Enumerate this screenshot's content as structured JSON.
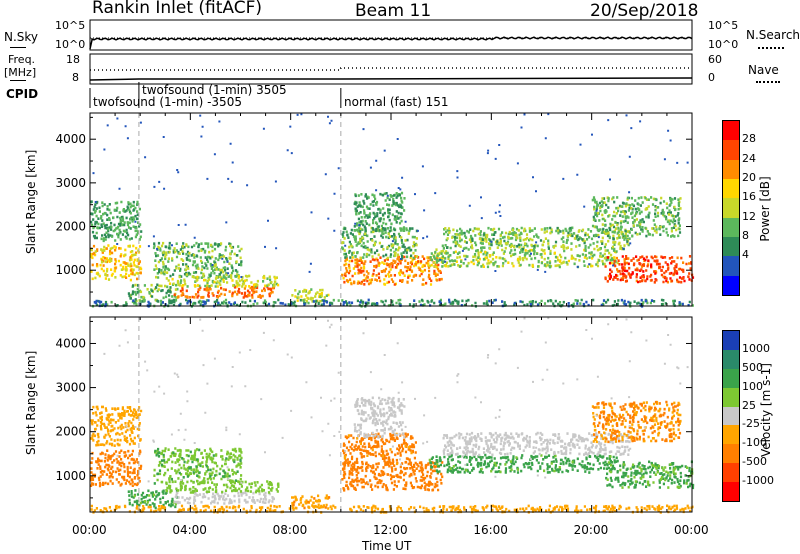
{
  "header": {
    "title": "Rankin Inlet (fitACF)",
    "beam": "Beam 11",
    "date": "20/Sep/2018"
  },
  "top_panels": {
    "nsky_label": "N.Sky",
    "nsky_ticks": [
      "10^5",
      "10^0"
    ],
    "nsearch_label": "N.Search",
    "nsearch_ticks": [
      "10^5",
      "10^0"
    ],
    "freq_label_1": "Freq.",
    "freq_label_2": "[MHz]",
    "freq_ticks": [
      "18",
      "8"
    ],
    "nave_label": "Nave",
    "nave_ticks": [
      "60",
      "0"
    ],
    "cpid_label": "CPID",
    "cpid_segments": [
      {
        "text": "twofsound (1-min) -3505",
        "row": 2
      },
      {
        "text": "twofsound (1-min) 3505",
        "row": 1
      },
      {
        "text": "normal (fast) 151",
        "row": 2
      }
    ]
  },
  "chart_data": [
    {
      "type": "heatmap",
      "name": "power",
      "title": "",
      "xlabel": "",
      "ylabel": "Slant Range [km]",
      "xlim": [
        0,
        24
      ],
      "ylim": [
        180,
        4600
      ],
      "x_ticks": [
        "00:00",
        "04:00",
        "08:00",
        "12:00",
        "16:00",
        "20:00",
        "00:00"
      ],
      "y_ticks": [
        1000,
        2000,
        3000,
        4000
      ],
      "mode_change_hours": [
        1.95,
        10.0
      ],
      "colorbar": {
        "label": "Power [dB]",
        "ticks": [
          "4",
          "8",
          "12",
          "16",
          "20",
          "24",
          "28"
        ],
        "colors": [
          "#0000ff",
          "#2255bb",
          "#2e8b57",
          "#5cb85c",
          "#c8d82a",
          "#ffd700",
          "#ff8c00",
          "#ff4500",
          "#ff0000"
        ]
      },
      "echo_regions": [
        {
          "t0": 0.0,
          "t1": 2.0,
          "r0": 800,
          "r1": 1600,
          "v": 20
        },
        {
          "t0": 0.0,
          "t1": 2.0,
          "r0": 1700,
          "r1": 2600,
          "v": 10
        },
        {
          "t0": 1.5,
          "t1": 3.5,
          "r0": 300,
          "r1": 700,
          "v": 12
        },
        {
          "t0": 2.5,
          "t1": 6.0,
          "r0": 850,
          "r1": 1650,
          "v": 12
        },
        {
          "t0": 3.3,
          "t1": 7.3,
          "r0": 400,
          "r1": 650,
          "v": 26
        },
        {
          "t0": 3.0,
          "t1": 7.5,
          "r0": 650,
          "r1": 900,
          "v": 16
        },
        {
          "t0": 8.0,
          "t1": 9.5,
          "r0": 300,
          "r1": 600,
          "v": 16
        },
        {
          "t0": 10.0,
          "t1": 14.0,
          "r0": 700,
          "r1": 1350,
          "v": 24
        },
        {
          "t0": 10.0,
          "t1": 13.0,
          "r0": 1300,
          "r1": 2000,
          "v": 12
        },
        {
          "t0": 10.5,
          "t1": 12.5,
          "r0": 1900,
          "r1": 2800,
          "v": 10
        },
        {
          "t0": 13.5,
          "t1": 21.0,
          "r0": 1100,
          "r1": 1500,
          "v": 15
        },
        {
          "t0": 14.0,
          "t1": 21.5,
          "r0": 1500,
          "r1": 2000,
          "v": 13
        },
        {
          "t0": 20.5,
          "t1": 24.0,
          "r0": 750,
          "r1": 1350,
          "v": 28
        },
        {
          "t0": 20.0,
          "t1": 23.5,
          "r0": 1800,
          "r1": 2700,
          "v": 12
        },
        {
          "t0": 0.0,
          "t1": 24.0,
          "r0": 200,
          "r1": 350,
          "v": 8
        }
      ]
    },
    {
      "type": "heatmap",
      "name": "velocity",
      "title": "",
      "xlabel": "Time UT",
      "ylabel": "Slant Range [km]",
      "xlim": [
        0,
        24
      ],
      "ylim": [
        180,
        4600
      ],
      "x_ticks": [
        "00:00",
        "04:00",
        "08:00",
        "12:00",
        "16:00",
        "20:00",
        "00:00"
      ],
      "y_ticks": [
        1000,
        2000,
        3000,
        4000
      ],
      "mode_change_hours": [
        1.95,
        10.0
      ],
      "colorbar": {
        "label": "Velocity [m s-1]",
        "ticks": [
          "1000",
          "500",
          "100",
          "25",
          "-25",
          "-100",
          "-500",
          "-1000"
        ],
        "colors": [
          "#1a3fb5",
          "#2a8a6a",
          "#3aa34a",
          "#7dc832",
          "#c8c8c8",
          "#ffa500",
          "#ff7f00",
          "#ff4000",
          "#ff0000"
        ]
      },
      "echo_regions": [
        {
          "t0": 0.0,
          "t1": 2.0,
          "r0": 800,
          "r1": 1600,
          "v": -200
        },
        {
          "t0": 0.0,
          "t1": 2.0,
          "r0": 1700,
          "r1": 2600,
          "v": -50
        },
        {
          "t0": 1.5,
          "t1": 3.5,
          "r0": 300,
          "r1": 700,
          "v": 150
        },
        {
          "t0": 2.5,
          "t1": 6.0,
          "r0": 850,
          "r1": 1650,
          "v": 80
        },
        {
          "t0": 3.3,
          "t1": 7.3,
          "r0": 400,
          "r1": 650,
          "v": 0
        },
        {
          "t0": 3.0,
          "t1": 7.5,
          "r0": 650,
          "r1": 900,
          "v": 60
        },
        {
          "t0": 8.0,
          "t1": 9.5,
          "r0": 300,
          "r1": 600,
          "v": -80
        },
        {
          "t0": 10.0,
          "t1": 14.0,
          "r0": 700,
          "r1": 1350,
          "v": -300
        },
        {
          "t0": 10.0,
          "t1": 13.0,
          "r0": 1300,
          "r1": 2000,
          "v": -150
        },
        {
          "t0": 10.5,
          "t1": 12.5,
          "r0": 1900,
          "r1": 2800,
          "v": 0
        },
        {
          "t0": 13.5,
          "t1": 21.0,
          "r0": 1100,
          "r1": 1500,
          "v": 150
        },
        {
          "t0": 14.0,
          "t1": 21.5,
          "r0": 1500,
          "r1": 2000,
          "v": 5
        },
        {
          "t0": 20.5,
          "t1": 24.0,
          "r0": 750,
          "r1": 1350,
          "v": 120
        },
        {
          "t0": 20.0,
          "t1": 23.5,
          "r0": 1800,
          "r1": 2700,
          "v": -100
        },
        {
          "t0": 0.0,
          "t1": 24.0,
          "r0": 200,
          "r1": 350,
          "v": -60
        }
      ]
    }
  ]
}
